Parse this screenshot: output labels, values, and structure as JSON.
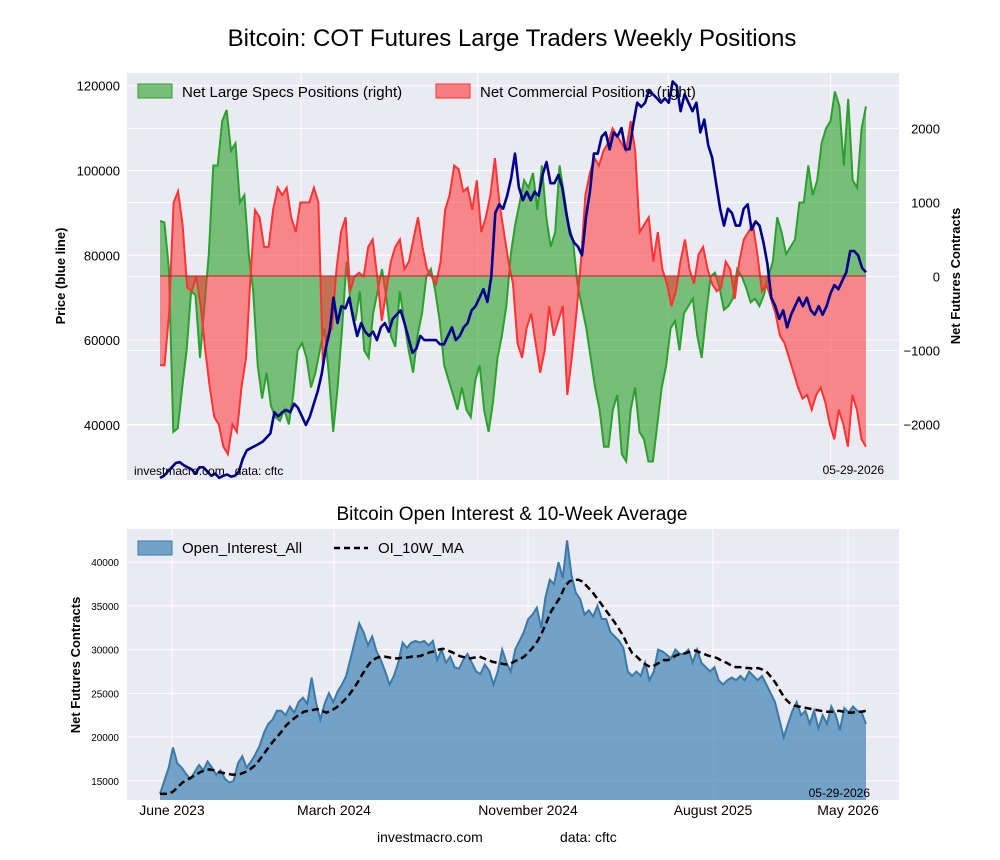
{
  "title": "Bitcoin: COT Futures Large Traders Weekly Positions",
  "source_site": "investmacro.com",
  "source_data": "data: cftc",
  "source_line": "investmacro.com   data: cftc",
  "date_stamp": "05-29-2026",
  "chart_data": [
    {
      "type": "line",
      "ylabel": "Price (blue line)",
      "y2label": "Net Futures Contracts",
      "ylim": [
        27000,
        123000
      ],
      "y2lim": [
        -2750,
        2750
      ],
      "yticks": [
        "40000",
        "60000",
        "80000",
        "100000",
        "120000"
      ],
      "y2ticks": [
        "−2000",
        "−1000",
        "0",
        "1000",
        "2000"
      ],
      "grid": true,
      "legend_position": "top",
      "colors": {
        "specs": "#2ca02c",
        "commercial": "#ff3333",
        "price": "#00008b"
      },
      "series": [
        {
          "name": "Net Large Specs Positions (right)",
          "type": "area",
          "values": [
            750,
            730,
            100,
            -2100,
            -2050,
            -1500,
            -1000,
            -200,
            -250,
            -1100,
            -400,
            300,
            1500,
            1500,
            2100,
            2250,
            1700,
            1800,
            1000,
            1100,
            300,
            -200,
            -1200,
            -1650,
            -1300,
            -1750,
            -1900,
            -1950,
            -1800,
            -2000,
            -1600,
            -1000,
            -900,
            -1100,
            -1500,
            -1300,
            -1000,
            -700,
            -1300,
            -2100,
            -1500,
            -700,
            200,
            -400,
            -600,
            -200,
            -1000,
            -1100,
            -500,
            -200,
            100,
            -300,
            -800,
            -950,
            -200,
            -600,
            -1000,
            -1300,
            -800,
            -500,
            0,
            100,
            -200,
            -600,
            -1200,
            -1400,
            -1600,
            -1800,
            -1500,
            -1800,
            -1900,
            -1400,
            -1200,
            -1800,
            -2100,
            -1700,
            -1100,
            -800,
            -400,
            300,
            700,
            1000,
            1300,
            1200,
            1400,
            900,
            1500,
            800,
            400,
            600,
            1500,
            1100,
            700,
            500,
            -100,
            -400,
            -700,
            -1100,
            -1500,
            -1800,
            -2300,
            -2300,
            -1800,
            -1600,
            -2400,
            -2500,
            -1800,
            -1500,
            -2100,
            -2200,
            -2500,
            -2500,
            -2000,
            -1500,
            -1200,
            -700,
            -600,
            -1000,
            -500,
            -400,
            -300,
            -800,
            -1100,
            -500,
            0,
            50,
            -150,
            -450,
            -400,
            -300,
            100,
            0,
            -150,
            -350,
            -300,
            -400,
            -250,
            0,
            200,
            800,
            600,
            300,
            400,
            500,
            1000,
            1000,
            1500,
            1100,
            1300,
            1800,
            2000,
            2100,
            2500,
            2300,
            1500,
            2400,
            1300,
            1200,
            2000,
            2300
          ]
        },
        {
          "name": "Net Commercial Positions (right)",
          "type": "area",
          "values": [
            -1200,
            -1200,
            -500,
            1000,
            1150,
            700,
            -150,
            -200,
            0,
            -400,
            -1000,
            -1500,
            -1900,
            -2000,
            -2300,
            -2400,
            -2000,
            -2100,
            -1500,
            -1100,
            0,
            900,
            800,
            400,
            400,
            900,
            1200,
            1100,
            1200,
            800,
            600,
            1000,
            1000,
            1000,
            1200,
            1000,
            -1200,
            -800,
            -700,
            100,
            600,
            800,
            -200,
            0,
            50,
            0,
            400,
            500,
            0,
            -600,
            -200,
            200,
            400,
            500,
            100,
            200,
            500,
            800,
            400,
            100,
            0,
            -100,
            200,
            900,
            1100,
            1500,
            1450,
            1150,
            1200,
            900,
            1300,
            600,
            800,
            1100,
            1600,
            1000,
            600,
            200,
            -100,
            -900,
            -1100,
            -700,
            -500,
            -900,
            -1300,
            -1000,
            -400,
            -800,
            -600,
            -400,
            -1600,
            -1100,
            -500,
            200,
            1100,
            1400,
            1600,
            1500,
            1700,
            1800,
            2000,
            1900,
            1800,
            1700,
            2100,
            1700,
            600,
            700,
            800,
            200,
            600,
            100,
            -100,
            -400,
            -200,
            200,
            500,
            100,
            -100,
            300,
            400,
            100,
            -100,
            -200,
            -150,
            200,
            100,
            -300,
            200,
            500,
            600,
            700,
            300,
            -200,
            -100,
            -300,
            -500,
            -800,
            -900,
            -1100,
            -1300,
            -1500,
            -1650,
            -1600,
            -1800,
            -1600,
            -1500,
            -1700,
            -2000,
            -2200,
            -1800,
            -2000,
            -2300,
            -1600,
            -1800,
            -2200,
            -2300
          ]
        },
        {
          "name": "Price",
          "type": "line",
          "values": [
            27500,
            28000,
            29000,
            30000,
            31000,
            31200,
            30500,
            30000,
            29500,
            28500,
            30000,
            30000,
            29000,
            28000,
            28500,
            27500,
            28000,
            28300,
            27800,
            28000,
            29000,
            32000,
            34000,
            34500,
            35000,
            35500,
            36000,
            37000,
            38000,
            43000,
            42000,
            43000,
            43500,
            43000,
            45000,
            44000,
            42000,
            40000,
            42000,
            45000,
            48000,
            52000,
            58000,
            62000,
            70000,
            64000,
            68000,
            67500,
            70000,
            65000,
            61000,
            64000,
            62000,
            61000,
            62000,
            60000,
            63000,
            64000,
            62000,
            65000,
            66000,
            67000,
            64000,
            60500,
            57000,
            58000,
            61000,
            60000,
            60000,
            60000,
            60000,
            59000,
            59000,
            61000,
            63000,
            60000,
            61000,
            63000,
            64000,
            67000,
            68000,
            70000,
            72000,
            69000,
            75000,
            90000,
            92000,
            91000,
            94000,
            98000,
            104000,
            96000,
            93000,
            95000,
            93000,
            95000,
            94000,
            99000,
            102000,
            97000,
            97000,
            99000,
            96000,
            90000,
            85000,
            83000,
            82000,
            80000,
            89000,
            95000,
            104000,
            104000,
            108000,
            109000,
            105000,
            109000,
            108000,
            110000,
            105000,
            105000,
            111000,
            116000,
            115000,
            116000,
            119000,
            118000,
            117000,
            116000,
            117000,
            116000,
            121000,
            120000,
            114000,
            118000,
            116000,
            114000,
            116000,
            109000,
            112000,
            106000,
            103000,
            97000,
            91000,
            87000,
            91000,
            90000,
            87000,
            87000,
            91000,
            92000,
            86000,
            88000,
            87000,
            83000,
            78000,
            70000,
            68000,
            65000,
            67000,
            63000,
            66000,
            68000,
            70000,
            68000,
            70000,
            67000,
            66000,
            68000,
            66000,
            68000,
            71000,
            73000,
            72000,
            74000,
            76000,
            81000,
            81000,
            80000,
            77000,
            76000
          ]
        }
      ]
    },
    {
      "type": "area",
      "title": "Bitcoin Open Interest & 10-Week Average",
      "ylabel": "Net Futures Contracts",
      "ylim": [
        12800,
        43800
      ],
      "yticks": [
        "15000",
        "20000",
        "25000",
        "30000",
        "35000",
        "40000"
      ],
      "xticks": [
        "June 2023",
        "March 2024",
        "November 2024",
        "August 2025",
        "May 2026"
      ],
      "grid": true,
      "legend_position": "top-left",
      "colors": {
        "oi_fill": "#4a8ab8",
        "oi_line": "#3a7aaa",
        "ma": "#000000"
      },
      "series": [
        {
          "name": "Open_Interest_All",
          "type": "area",
          "values": [
            13500,
            15000,
            16500,
            18800,
            17000,
            16500,
            15800,
            15200,
            16000,
            16800,
            16200,
            17200,
            16500,
            15700,
            16200,
            15200,
            14800,
            15000,
            17000,
            17800,
            16500,
            17200,
            18000,
            19000,
            20500,
            21500,
            22000,
            23000,
            23000,
            22500,
            23500,
            22800,
            24000,
            24500,
            23800,
            26800,
            24000,
            22000,
            23800,
            25000,
            24000,
            25200,
            26000,
            27000,
            29000,
            31000,
            33000,
            32000,
            30500,
            31500,
            29800,
            28800,
            27500,
            26000,
            27000,
            28500,
            30800,
            30200,
            30800,
            31000,
            30800,
            31000,
            30500,
            31000,
            28800,
            30000,
            28500,
            29200,
            28000,
            27800,
            28800,
            29500,
            28500,
            27500,
            27200,
            28300,
            27600,
            26000,
            27500,
            30000,
            28500,
            27500,
            30000,
            31000,
            32000,
            33500,
            34000,
            34800,
            32500,
            36000,
            38000,
            37500,
            40000,
            38200,
            42500,
            38500,
            36500,
            35800,
            34000,
            34500,
            33800,
            35000,
            33500,
            33500,
            32000,
            31500,
            31000,
            30200,
            27500,
            27000,
            27500,
            27000,
            28500,
            26500,
            27500,
            30000,
            29800,
            29400,
            29000,
            30000,
            29500,
            29500,
            30000,
            28500,
            30000,
            28500,
            28000,
            27500,
            28000,
            26500,
            26000,
            26500,
            26800,
            26500,
            27000,
            26500,
            27500,
            27000,
            26500,
            27000,
            26000,
            25000,
            24000,
            22000,
            20000,
            21500,
            23000,
            24000,
            22500,
            23000,
            21500,
            23000,
            21000,
            22500,
            21500,
            23500,
            22500,
            20800,
            23300,
            22800,
            23500,
            23000,
            22800,
            21500
          ]
        },
        {
          "name": "OI_10W_MA",
          "type": "line",
          "values": [
            13500,
            13500,
            13500,
            13800,
            14300,
            14800,
            15100,
            15400,
            15700,
            16000,
            16200,
            16300,
            16200,
            16000,
            15900,
            15800,
            15700,
            15700,
            15800,
            16000,
            16300,
            16700,
            17300,
            18000,
            18700,
            19400,
            20000,
            20600,
            21300,
            21800,
            22200,
            22600,
            22900,
            23000,
            23100,
            23200,
            23000,
            22800,
            23000,
            23300,
            23700,
            24200,
            24800,
            25500,
            26300,
            27200,
            28000,
            28700,
            29000,
            29200,
            29200,
            29100,
            29000,
            29000,
            29100,
            29100,
            29200,
            29200,
            29300,
            29500,
            29700,
            29800,
            30000,
            30100,
            29900,
            29700,
            29400,
            29200,
            29100,
            29000,
            29100,
            29200,
            29000,
            28800,
            28600,
            28500,
            28400,
            28300,
            28400,
            28700,
            28900,
            29200,
            29700,
            30300,
            31000,
            32000,
            33200,
            34400,
            35200,
            36000,
            37200,
            37800,
            38000,
            38000,
            37800,
            37200,
            36700,
            36000,
            35300,
            34600,
            33900,
            33200,
            32400,
            31600,
            30500,
            29600,
            29200,
            28700,
            28300,
            28000,
            28200,
            28500,
            28800,
            28800,
            29100,
            29400,
            29500,
            29600,
            29800,
            29900,
            29700,
            29500,
            29300,
            29200,
            29000,
            28700,
            28500,
            28200,
            28000,
            28000,
            27900,
            27900,
            27800,
            27900,
            27700,
            27400,
            26800,
            26100,
            25200,
            24400,
            23900,
            23600,
            23500,
            23400,
            23300,
            23200,
            23100,
            23000,
            22900,
            22900,
            22900,
            23000,
            22900,
            22800,
            22800,
            22900,
            22900,
            23000
          ]
        }
      ]
    }
  ]
}
